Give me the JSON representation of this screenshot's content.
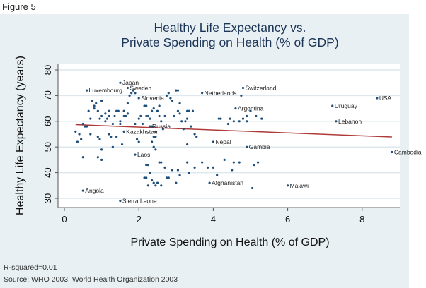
{
  "figure_label": "Figure 5",
  "chart_data": {
    "type": "scatter",
    "title": [
      "Healthy Life Expectancy vs.",
      "Private Spending on Health (% of GDP)"
    ],
    "xlabel": "Private Spending on Health (% of GDP)",
    "ylabel": "Healthy Life Expectancy (years)",
    "xlim": [
      -0.2,
      9.0
    ],
    "ylim": [
      27,
      82
    ],
    "xticks": [
      0,
      2,
      4,
      6,
      8
    ],
    "yticks": [
      30,
      40,
      50,
      60,
      70,
      80
    ],
    "grid": true,
    "colors": {
      "points": "#1f4e79",
      "fit": "#b03a3a",
      "grid": "#dce8ee",
      "background": "#e8f0f3",
      "plot_bg": "#ffffff"
    },
    "fit_line": {
      "x": [
        0.3,
        8.8
      ],
      "y": [
        58.7,
        53.9
      ]
    },
    "labeled_points": [
      {
        "label": "Japan",
        "x": 1.5,
        "y": 75
      },
      {
        "label": "Luxembourg",
        "x": 0.6,
        "y": 72
      },
      {
        "label": "Sweden",
        "x": 1.7,
        "y": 73
      },
      {
        "label": "Slovenia",
        "x": 2.0,
        "y": 69
      },
      {
        "label": "Netherlands",
        "x": 3.7,
        "y": 71
      },
      {
        "label": "Switzerland",
        "x": 4.8,
        "y": 73
      },
      {
        "label": "USA",
        "x": 8.4,
        "y": 69
      },
      {
        "label": "Uruguay",
        "x": 7.2,
        "y": 66
      },
      {
        "label": "Argentina",
        "x": 4.6,
        "y": 65
      },
      {
        "label": "Lebanon",
        "x": 7.3,
        "y": 60
      },
      {
        "label": "Russia",
        "x": 2.3,
        "y": 58
      },
      {
        "label": "Kazakhstan",
        "x": 1.6,
        "y": 56
      },
      {
        "label": "Nepal",
        "x": 4.0,
        "y": 52
      },
      {
        "label": "Gambia",
        "x": 4.9,
        "y": 50
      },
      {
        "label": "Cambodia",
        "x": 8.8,
        "y": 48
      },
      {
        "label": "Laos",
        "x": 1.9,
        "y": 47
      },
      {
        "label": "Afghanistan",
        "x": 3.9,
        "y": 36
      },
      {
        "label": "Malawi",
        "x": 6.0,
        "y": 35
      },
      {
        "label": "Angola",
        "x": 0.5,
        "y": 33
      },
      {
        "label": "Sierra Leone",
        "x": 1.5,
        "y": 29
      }
    ],
    "points": [
      [
        0.3,
        56
      ],
      [
        0.35,
        52
      ],
      [
        0.4,
        55
      ],
      [
        0.45,
        53
      ],
      [
        0.5,
        59
      ],
      [
        0.5,
        46
      ],
      [
        0.55,
        58
      ],
      [
        0.6,
        58
      ],
      [
        0.65,
        64
      ],
      [
        0.7,
        61
      ],
      [
        0.7,
        55
      ],
      [
        0.75,
        68
      ],
      [
        0.8,
        66
      ],
      [
        0.8,
        65
      ],
      [
        0.85,
        67
      ],
      [
        0.9,
        64
      ],
      [
        0.9,
        54
      ],
      [
        0.95,
        53
      ],
      [
        0.95,
        61
      ],
      [
        1.0,
        62
      ],
      [
        1.0,
        68
      ],
      [
        1.0,
        49
      ],
      [
        1.0,
        45
      ],
      [
        0.9,
        46
      ],
      [
        1.1,
        60
      ],
      [
        1.1,
        63
      ],
      [
        1.15,
        61
      ],
      [
        1.2,
        64
      ],
      [
        1.2,
        62
      ],
      [
        1.2,
        55
      ],
      [
        1.25,
        54
      ],
      [
        1.3,
        50
      ],
      [
        1.3,
        59
      ],
      [
        1.35,
        62
      ],
      [
        1.4,
        64
      ],
      [
        1.45,
        64
      ],
      [
        1.4,
        54
      ],
      [
        1.5,
        60
      ],
      [
        1.5,
        59
      ],
      [
        1.55,
        51
      ],
      [
        1.6,
        62
      ],
      [
        1.6,
        64
      ],
      [
        1.65,
        62
      ],
      [
        1.7,
        67
      ],
      [
        1.7,
        63
      ],
      [
        1.75,
        70
      ],
      [
        1.8,
        71
      ],
      [
        1.85,
        72
      ],
      [
        1.9,
        71
      ],
      [
        1.9,
        59
      ],
      [
        1.95,
        53
      ],
      [
        2.0,
        61
      ],
      [
        2.05,
        62
      ],
      [
        2.1,
        59
      ],
      [
        2.15,
        66
      ],
      [
        2.2,
        66
      ],
      [
        2.2,
        62
      ],
      [
        2.25,
        62
      ],
      [
        2.3,
        61
      ],
      [
        2.35,
        64
      ],
      [
        2.35,
        58
      ],
      [
        2.4,
        54
      ],
      [
        2.4,
        65
      ],
      [
        2.45,
        56
      ],
      [
        2.45,
        54
      ],
      [
        2.5,
        64
      ],
      [
        2.55,
        66
      ],
      [
        2.55,
        62
      ],
      [
        2.6,
        60
      ],
      [
        2.65,
        57
      ],
      [
        2.7,
        62
      ],
      [
        2.75,
        70
      ],
      [
        2.8,
        71
      ],
      [
        2.85,
        69
      ],
      [
        2.9,
        68
      ],
      [
        2.95,
        62
      ],
      [
        3.0,
        72
      ],
      [
        3.05,
        64
      ],
      [
        3.05,
        72
      ],
      [
        3.1,
        67
      ],
      [
        3.1,
        63
      ],
      [
        3.15,
        60
      ],
      [
        3.2,
        57
      ],
      [
        3.25,
        60
      ],
      [
        3.3,
        61
      ],
      [
        3.3,
        64
      ],
      [
        3.35,
        64
      ],
      [
        3.4,
        58
      ],
      [
        3.45,
        64
      ],
      [
        3.55,
        54
      ],
      [
        3.5,
        55
      ],
      [
        2.35,
        52
      ],
      [
        2.4,
        50
      ],
      [
        2.45,
        49
      ],
      [
        2.0,
        52
      ],
      [
        2.55,
        44
      ],
      [
        2.6,
        44
      ],
      [
        2.2,
        43
      ],
      [
        2.25,
        43
      ],
      [
        2.3,
        40
      ],
      [
        2.35,
        37
      ],
      [
        2.4,
        36
      ],
      [
        2.45,
        35
      ],
      [
        2.7,
        42
      ],
      [
        2.75,
        38
      ],
      [
        2.2,
        38
      ],
      [
        2.15,
        38
      ],
      [
        2.25,
        35
      ],
      [
        2.5,
        36
      ],
      [
        2.6,
        35
      ],
      [
        2.8,
        38
      ],
      [
        2.9,
        41
      ],
      [
        3.05,
        41
      ],
      [
        3.1,
        39
      ],
      [
        3.0,
        36
      ],
      [
        3.3,
        51
      ],
      [
        3.3,
        44
      ],
      [
        3.35,
        40
      ],
      [
        3.5,
        42
      ],
      [
        3.7,
        44
      ],
      [
        4.15,
        61
      ],
      [
        4.2,
        61
      ],
      [
        4.4,
        59
      ],
      [
        4.55,
        60
      ],
      [
        4.45,
        61
      ],
      [
        4.7,
        60
      ],
      [
        4.8,
        61
      ],
      [
        4.9,
        60
      ],
      [
        5.15,
        62
      ],
      [
        5.3,
        61
      ],
      [
        4.3,
        45
      ],
      [
        4.55,
        44
      ],
      [
        4.7,
        44
      ],
      [
        5.1,
        43
      ],
      [
        5.2,
        44
      ],
      [
        5.05,
        34
      ],
      [
        4.75,
        70
      ],
      [
        4.9,
        62
      ],
      [
        5.0,
        64
      ],
      [
        4.5,
        41
      ],
      [
        4.1,
        39
      ],
      [
        4.0,
        42
      ],
      [
        3.85,
        42
      ]
    ],
    "annotations": [
      "R-squared=0.01",
      "Source: WHO 2003, World Health Organization 2003"
    ]
  }
}
